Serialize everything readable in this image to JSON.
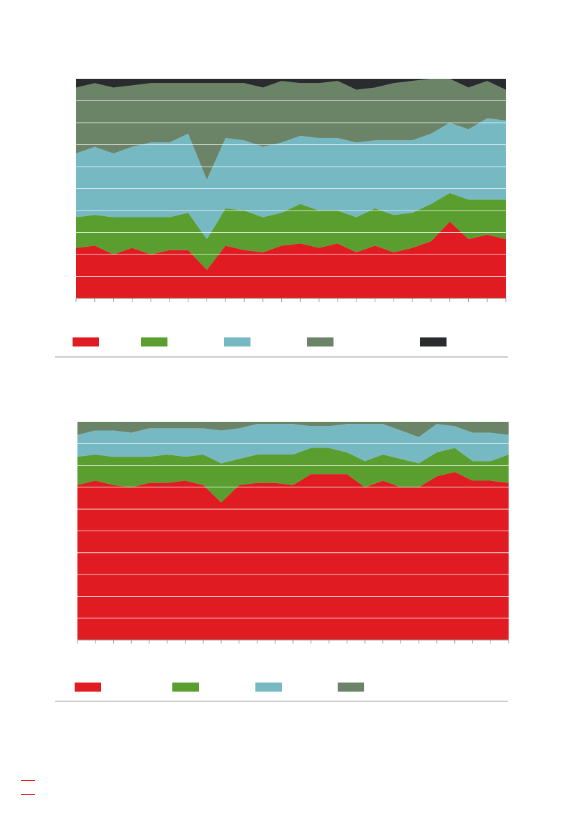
{
  "palette": {
    "red": "#e01b22",
    "green": "#5a9e2f",
    "light_blue": "#76b9c3",
    "grey_green": "#6b8468",
    "dark": "#2a2b2f",
    "gridline": "#ffffff",
    "axis": "#9a9a9a",
    "separator": "#9a9a9a",
    "footer_accent": "#e01b22"
  },
  "chart_data": [
    {
      "type": "area",
      "stacked": true,
      "normalized": true,
      "ylim": [
        0,
        100
      ],
      "gridlines": true,
      "legend_position": "bottom",
      "x": [
        1,
        2,
        3,
        4,
        5,
        6,
        7,
        8,
        9,
        10,
        11,
        12,
        13,
        14,
        15,
        16,
        17,
        18,
        19,
        20,
        21,
        22,
        23,
        24
      ],
      "series": [
        {
          "color_key": "red",
          "values": [
            23,
            24,
            20,
            23,
            20,
            22,
            22,
            13,
            24,
            22,
            21,
            24,
            25,
            23,
            25,
            21,
            24,
            21,
            23,
            26,
            35,
            27,
            29,
            27
          ]
        },
        {
          "color_key": "green",
          "values": [
            14,
            14,
            17,
            14,
            17,
            15,
            17,
            14,
            17,
            18,
            16,
            15,
            18,
            17,
            15,
            16,
            17,
            17,
            16,
            17,
            13,
            18,
            16,
            18
          ]
        },
        {
          "color_key": "light_blue",
          "values": [
            29,
            31,
            29,
            32,
            34,
            34,
            36,
            27,
            32,
            32,
            32,
            32,
            31,
            33,
            33,
            34,
            31,
            34,
            33,
            32,
            32,
            32,
            37,
            36
          ]
        },
        {
          "color_key": "grey_green",
          "values": [
            30,
            29,
            30,
            28,
            27,
            27,
            23,
            44,
            25,
            26,
            27,
            28,
            24,
            25,
            26,
            24,
            24,
            26,
            27,
            25,
            20,
            19,
            17,
            14
          ]
        },
        {
          "color_key": "dark",
          "values": [
            4,
            2,
            4,
            3,
            2,
            2,
            2,
            2,
            2,
            2,
            4,
            1,
            2,
            2,
            1,
            5,
            4,
            2,
            1,
            0,
            0,
            4,
            1,
            5
          ]
        }
      ]
    },
    {
      "type": "area",
      "stacked": true,
      "normalized": true,
      "ylim": [
        0,
        100
      ],
      "gridlines": true,
      "legend_position": "bottom",
      "x": [
        1,
        2,
        3,
        4,
        5,
        6,
        7,
        8,
        9,
        10,
        11,
        12,
        13,
        14,
        15,
        16,
        17,
        18,
        19,
        20,
        21,
        22,
        23,
        24,
        25
      ],
      "series": [
        {
          "color_key": "red",
          "values": [
            71,
            73,
            71,
            70,
            72,
            72,
            73,
            71,
            63,
            71,
            72,
            72,
            71,
            76,
            76,
            76,
            70,
            73,
            70,
            70,
            75,
            77,
            73,
            73,
            72
          ]
        },
        {
          "color_key": "green",
          "values": [
            13,
            12,
            13,
            14,
            12,
            13,
            11,
            14,
            18,
            12,
            13,
            13,
            14,
            12,
            12,
            10,
            12,
            12,
            13,
            11,
            11,
            11,
            9,
            9,
            13
          ]
        },
        {
          "color_key": "light_blue",
          "values": [
            10,
            11,
            12,
            11,
            13,
            12,
            13,
            12,
            15,
            14,
            14,
            14,
            14,
            10,
            10,
            13,
            17,
            14,
            13,
            12,
            13,
            10,
            13,
            13,
            9
          ]
        },
        {
          "color_key": "grey_green",
          "values": [
            6,
            4,
            4,
            5,
            3,
            3,
            3,
            3,
            4,
            3,
            1,
            1,
            1,
            2,
            2,
            1,
            1,
            1,
            4,
            7,
            1,
            2,
            5,
            5,
            6
          ]
        }
      ]
    }
  ]
}
